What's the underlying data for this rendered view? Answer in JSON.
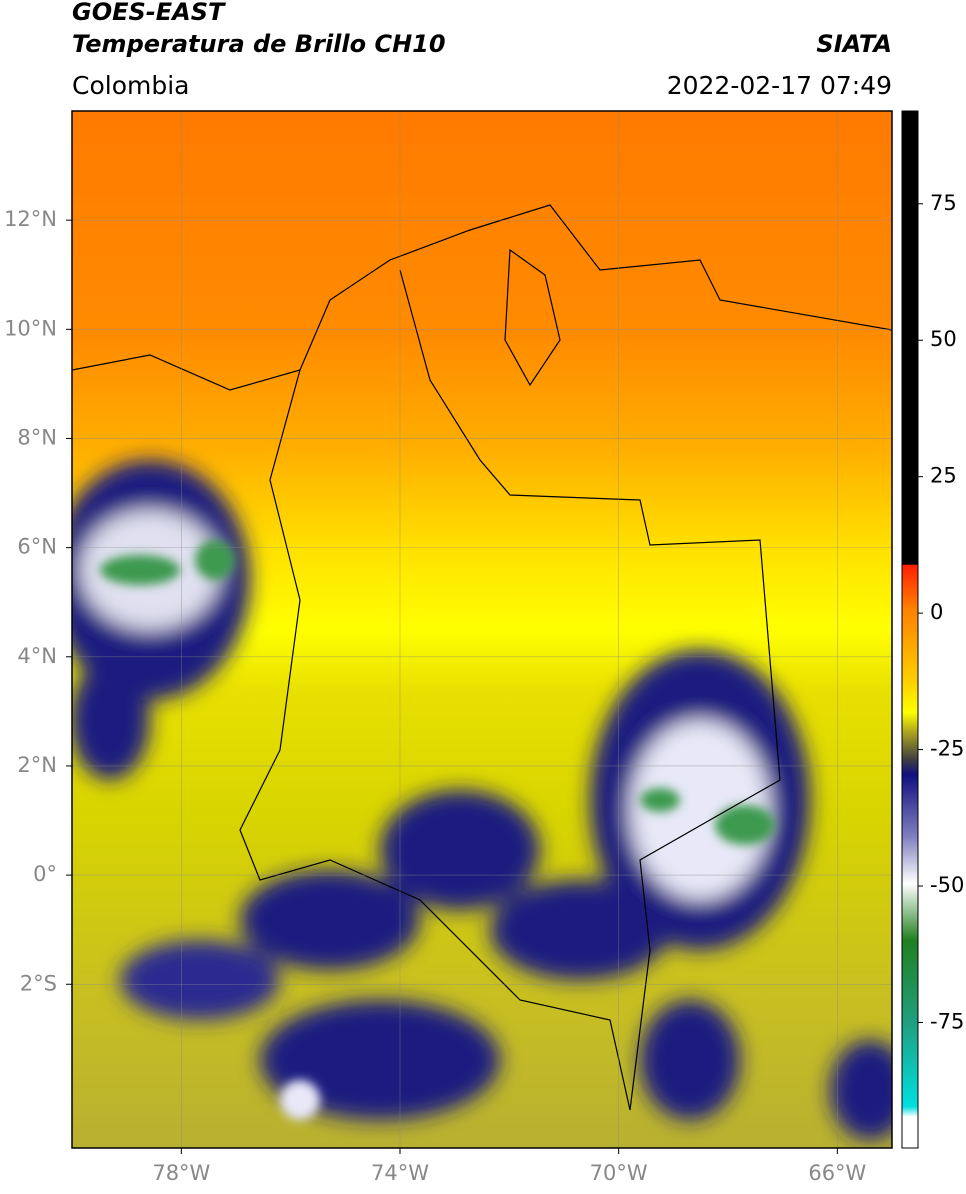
{
  "header": {
    "title_line1": "GOES-EAST",
    "title_line2": "Temperatura de Brillo CH10",
    "source": "SIATA",
    "region": "Colombia",
    "datetime": "2022-02-17 07:49"
  },
  "map": {
    "xlim": [
      -80,
      -65
    ],
    "ylim": [
      -5,
      14
    ],
    "xticks": [
      {
        "value": -78,
        "label": "78°W"
      },
      {
        "value": -74,
        "label": "74°W"
      },
      {
        "value": -70,
        "label": "70°W"
      },
      {
        "value": -66,
        "label": "66°W"
      }
    ],
    "yticks": [
      {
        "value": 12,
        "label": "12°N"
      },
      {
        "value": 10,
        "label": "10°N"
      },
      {
        "value": 8,
        "label": "8°N"
      },
      {
        "value": 6,
        "label": "6°N"
      },
      {
        "value": 4,
        "label": "4°N"
      },
      {
        "value": 2,
        "label": "2°N"
      },
      {
        "value": 0,
        "label": "0°"
      },
      {
        "value": -2,
        "label": "2°S"
      }
    ],
    "grid": true
  },
  "colorbar": {
    "lim": [
      -98,
      92
    ],
    "ticks": [
      75,
      50,
      25,
      0,
      -25,
      -50,
      -75
    ]
  }
}
